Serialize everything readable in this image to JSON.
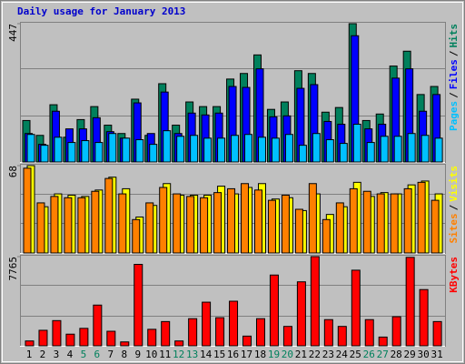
{
  "chart_data": [
    {
      "type": "bar",
      "title": "Daily usage for January 2013",
      "title_color": "#0000cc",
      "separator": "/",
      "ylim": [
        0,
        447
      ],
      "yticks": [
        447
      ],
      "series": [
        {
          "name": "Pages",
          "color": "#00c0ff",
          "values": [
            89,
            54,
            80,
            63,
            69,
            63,
            92,
            77,
            72,
            57,
            101,
            83,
            86,
            77,
            77,
            86,
            89,
            80,
            77,
            89,
            54,
            92,
            72,
            60,
            122,
            63,
            83,
            83,
            92,
            86,
            77
          ]
        },
        {
          "name": "Files",
          "color": "#0000ff",
          "values": [
            92,
            57,
            164,
            107,
            107,
            143,
            98,
            77,
            191,
            92,
            226,
            92,
            158,
            152,
            158,
            244,
            241,
            301,
            146,
            149,
            238,
            250,
            131,
            122,
            408,
            107,
            122,
            271,
            301,
            164,
            218
          ]
        },
        {
          "name": "Hits",
          "color": "#00805c",
          "values": [
            134,
            86,
            185,
            80,
            137,
            179,
            119,
            92,
            203,
            86,
            253,
            119,
            194,
            179,
            179,
            268,
            286,
            346,
            170,
            194,
            295,
            286,
            161,
            176,
            447,
            134,
            155,
            310,
            358,
            218,
            244
          ]
        }
      ]
    },
    {
      "type": "bar",
      "separator": "/",
      "ylim": [
        0,
        68
      ],
      "yticks": [
        68
      ],
      "series": [
        {
          "name": "Sites",
          "color": "#ff8000",
          "values": [
            66,
            39,
            44,
            43,
            43,
            48,
            58,
            46,
            26,
            39,
            51,
            46,
            44,
            43,
            47,
            50,
            54,
            49,
            41,
            45,
            34,
            54,
            26,
            39,
            50,
            48,
            46,
            46,
            50,
            55,
            41
          ]
        },
        {
          "name": "Visits",
          "color": "#ffff00",
          "values": [
            68,
            36,
            46,
            45,
            44,
            49,
            59,
            50,
            28,
            37,
            54,
            45,
            45,
            45,
            52,
            46,
            51,
            54,
            42,
            43,
            33,
            46,
            30,
            36,
            55,
            44,
            47,
            46,
            53,
            56,
            46
          ]
        }
      ]
    },
    {
      "type": "bar",
      "ylim": [
        0,
        7765
      ],
      "yticks": [
        7765
      ],
      "categories": [
        "1",
        "2",
        "3",
        "4",
        "5",
        "6",
        "7",
        "8",
        "9",
        "10",
        "11",
        "12",
        "13",
        "14",
        "15",
        "16",
        "17",
        "18",
        "19",
        "20",
        "21",
        "22",
        "23",
        "24",
        "25",
        "26",
        "27",
        "28",
        "29",
        "30",
        "31"
      ],
      "category_colors": [
        "#000000",
        "#000000",
        "#000000",
        "#000000",
        "#00805c",
        "#00805c",
        "#000000",
        "#000000",
        "#000000",
        "#000000",
        "#000000",
        "#00805c",
        "#00805c",
        "#000000",
        "#000000",
        "#000000",
        "#000000",
        "#000000",
        "#00805c",
        "#00805c",
        "#000000",
        "#000000",
        "#000000",
        "#000000",
        "#000000",
        "#00805c",
        "#00805c",
        "#000000",
        "#000000",
        "#000000",
        "#000000"
      ],
      "series": [
        {
          "name": "KBytes",
          "color": "#ff0000",
          "values": [
            422,
            1350,
            2194,
            1013,
            1519,
            3545,
            1266,
            338,
            7090,
            1435,
            2110,
            422,
            2363,
            3798,
            2448,
            3882,
            844,
            2363,
            6161,
            1688,
            5571,
            7765,
            2279,
            1688,
            6583,
            2279,
            760,
            2532,
            7700,
            4895,
            2110
          ]
        }
      ]
    }
  ]
}
